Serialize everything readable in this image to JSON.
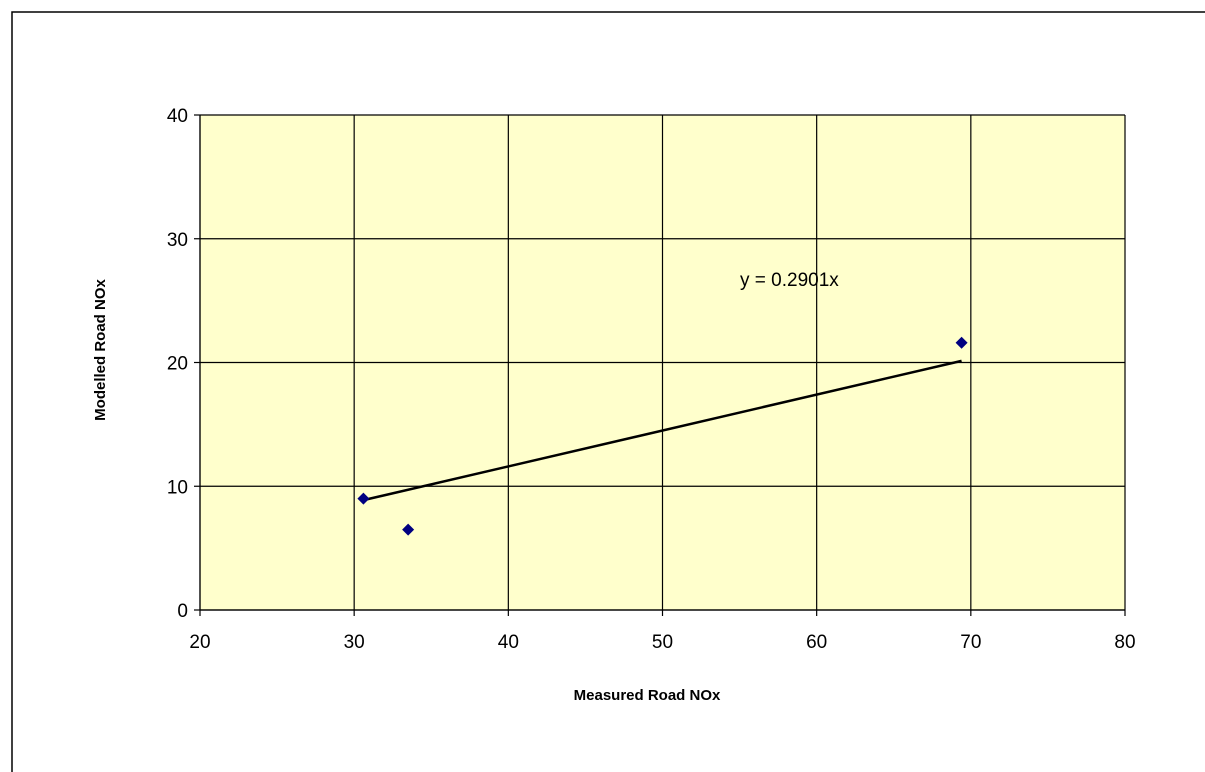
{
  "chart_data": {
    "type": "scatter",
    "xlabel": "Measured Road NOx",
    "ylabel": "Modelled Road NOx",
    "xlim": [
      20,
      80
    ],
    "ylim": [
      0,
      40
    ],
    "x_ticks": [
      20,
      30,
      40,
      50,
      60,
      70,
      80
    ],
    "y_ticks": [
      0,
      10,
      20,
      30,
      40
    ],
    "grid": true,
    "plot_background": "#ffffcc",
    "marker_color": "#000080",
    "marker_shape": "diamond",
    "series": [
      {
        "points": [
          {
            "x": 30.6,
            "y": 9.0
          },
          {
            "x": 33.5,
            "y": 6.5
          },
          {
            "x": 69.4,
            "y": 21.6
          }
        ]
      }
    ],
    "trendline": {
      "equation": "y = 0.2901x",
      "slope": 0.2901,
      "intercept": 0,
      "x_range": [
        30.6,
        69.4
      ]
    }
  }
}
